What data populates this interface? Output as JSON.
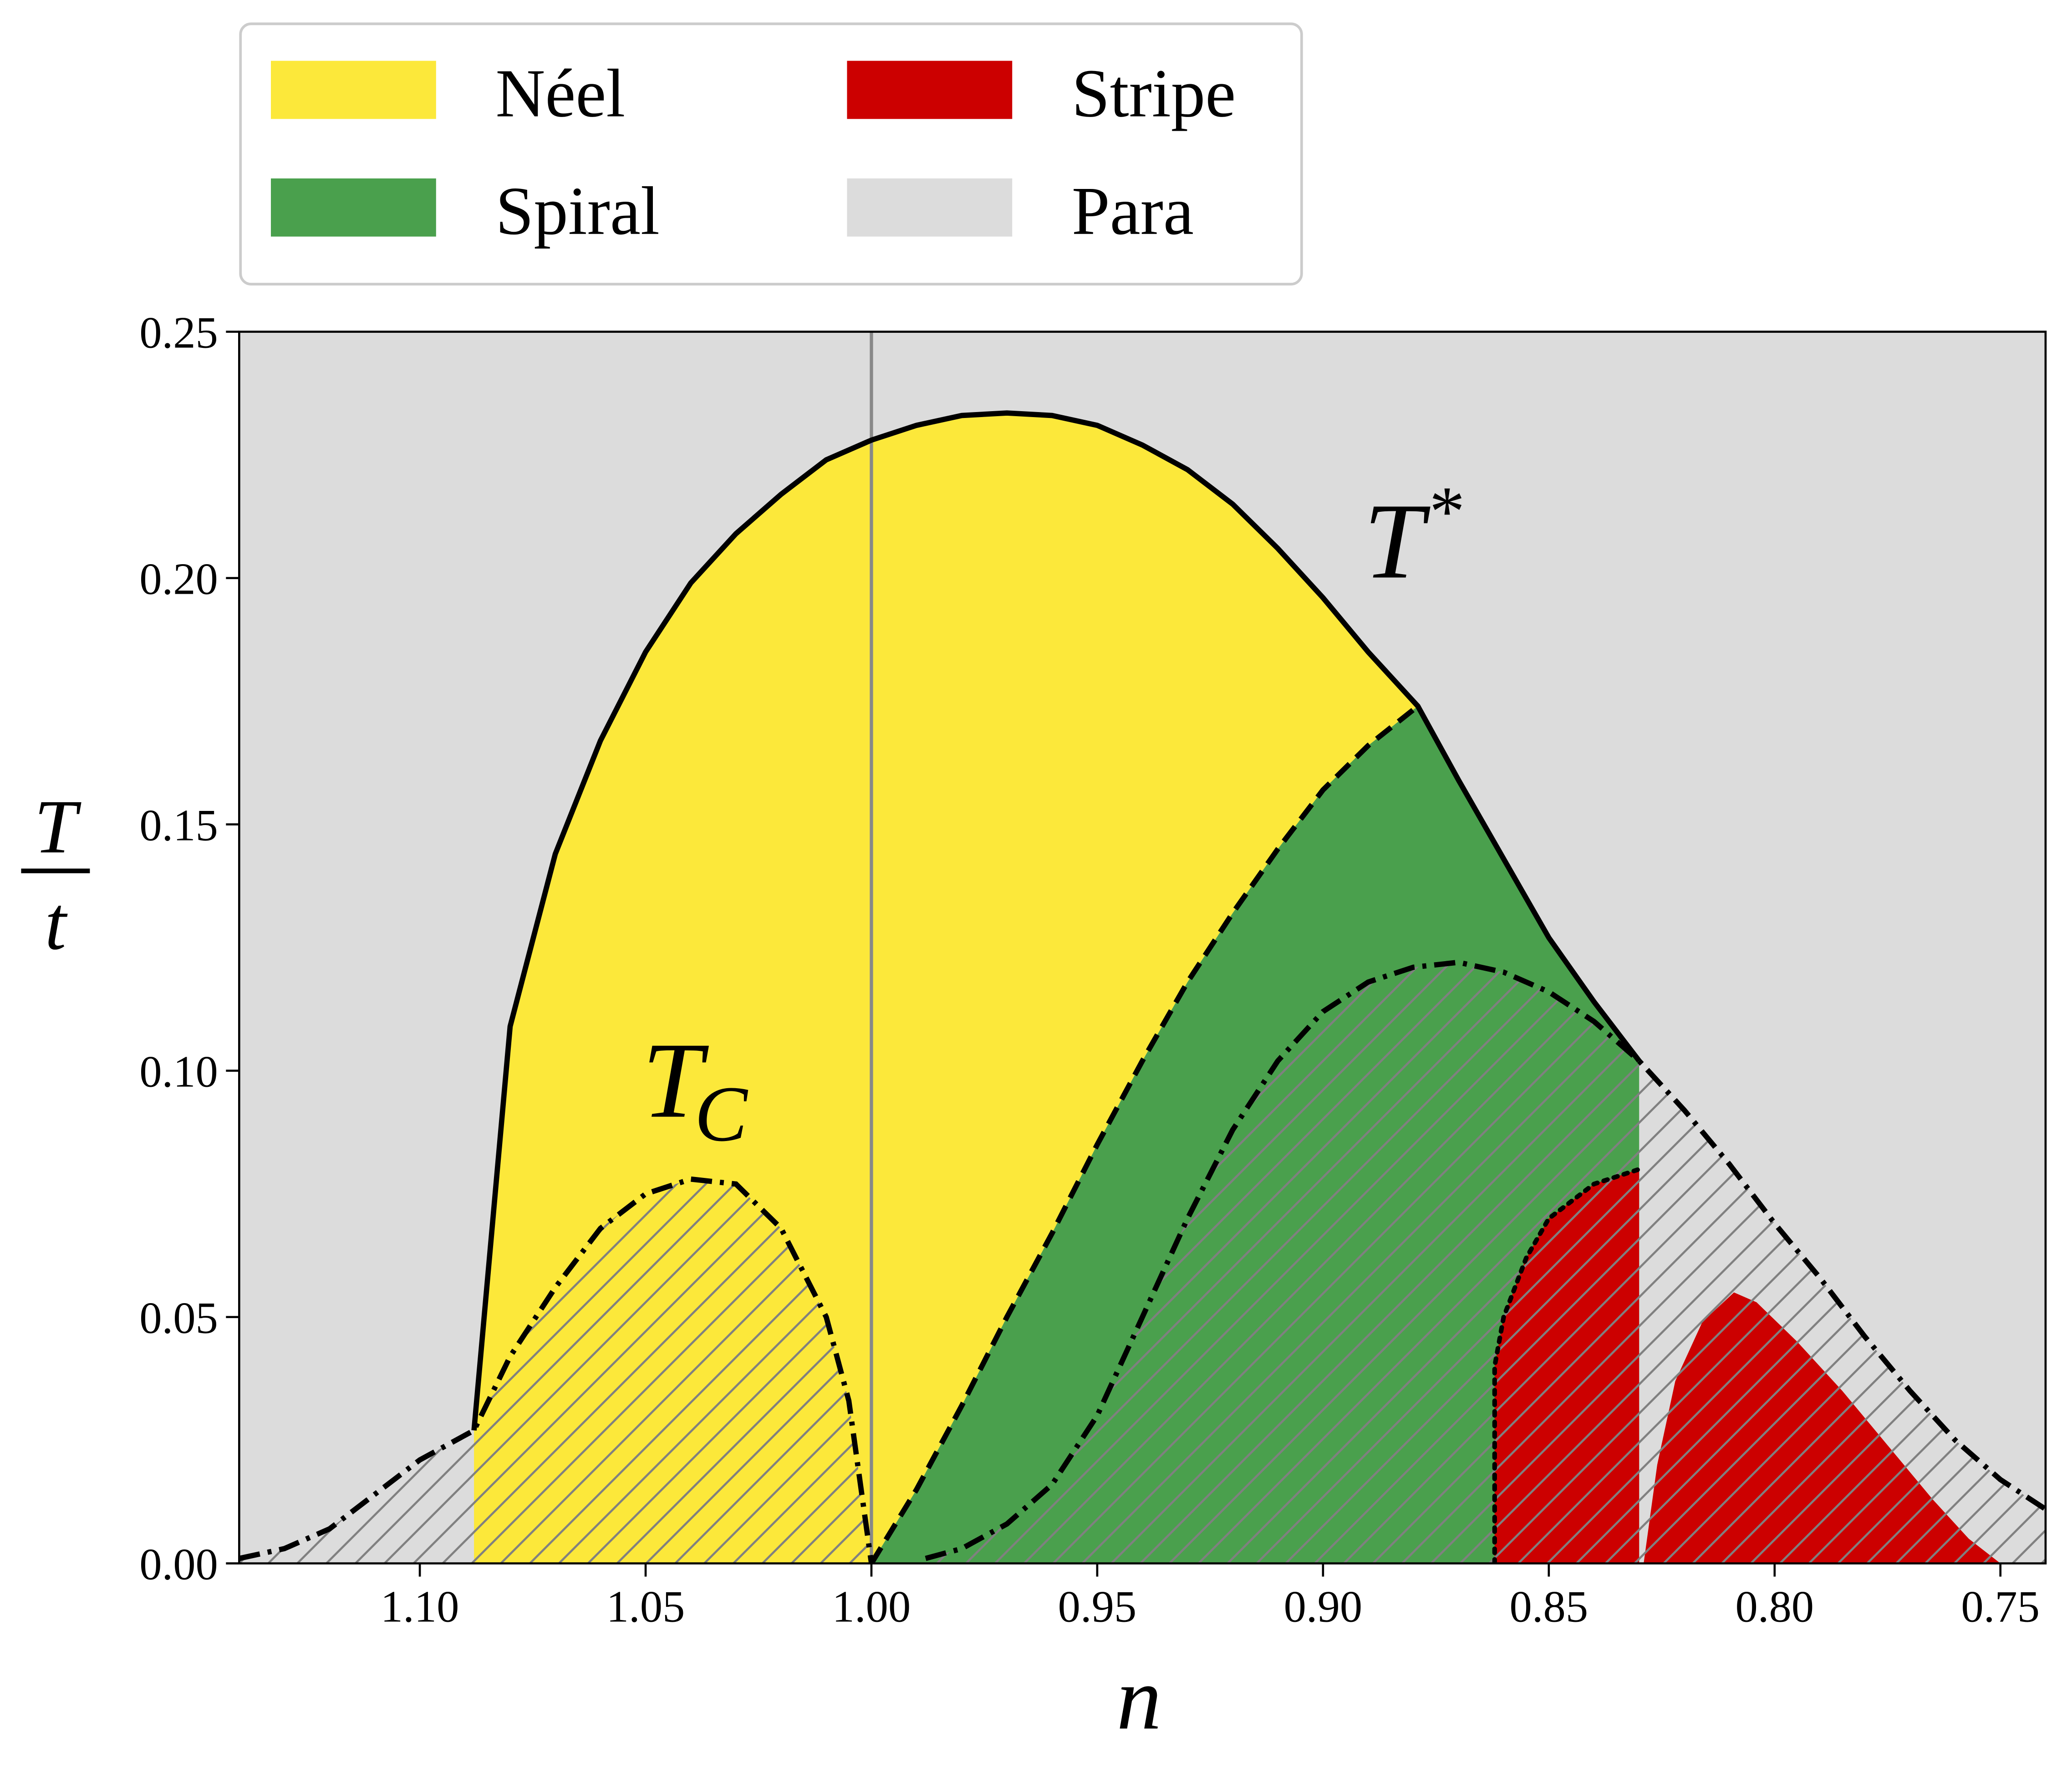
{
  "chart_data": {
    "type": "phase",
    "xlabel": "n",
    "ylabel": {
      "numerator": "T",
      "denominator": "t"
    },
    "xlim": [
      1.14,
      0.74
    ],
    "ylim": [
      0,
      0.25
    ],
    "xticks": [
      {
        "value": 1.1,
        "label": "1.10"
      },
      {
        "value": 1.05,
        "label": "1.05"
      },
      {
        "value": 1.0,
        "label": "1.00"
      },
      {
        "value": 0.95,
        "label": "0.95"
      },
      {
        "value": 0.9,
        "label": "0.90"
      },
      {
        "value": 0.85,
        "label": "0.85"
      },
      {
        "value": 0.8,
        "label": "0.80"
      },
      {
        "value": 0.75,
        "label": "0.75"
      }
    ],
    "yticks": [
      {
        "value": 0,
        "label": "0.00"
      },
      {
        "value": 0.05,
        "label": "0.05"
      },
      {
        "value": 0.1,
        "label": "0.10"
      },
      {
        "value": 0.15,
        "label": "0.15"
      },
      {
        "value": 0.2,
        "label": "0.20"
      },
      {
        "value": 0.25,
        "label": "0.25"
      }
    ],
    "legend": "top",
    "reference_x": 1.0,
    "series": [
      {
        "name": "Néel",
        "color": "#fce83a",
        "x": [
          1.088,
          1.088,
          1.08,
          1.07,
          1.06,
          1.05,
          1.04,
          1.03,
          1.02,
          1.01,
          1.0,
          0.99,
          0.98,
          0.97,
          0.96,
          0.95,
          0.94,
          0.93,
          0.92,
          0.91,
          0.9,
          0.89,
          0.879,
          0.89,
          0.9,
          0.91,
          0.92,
          0.93,
          0.94,
          0.95,
          0.96,
          0.97,
          0.98,
          0.99,
          1.0
        ],
        "y": [
          0,
          0.027,
          0.109,
          0.144,
          0.167,
          0.185,
          0.199,
          0.209,
          0.217,
          0.224,
          0.228,
          0.231,
          0.233,
          0.2335,
          0.233,
          0.231,
          0.227,
          0.222,
          0.215,
          0.206,
          0.196,
          0.185,
          0.174,
          0.166,
          0.157,
          0.145,
          0.132,
          0.118,
          0.102,
          0.085,
          0.067,
          0.05,
          0.032,
          0.015,
          0
        ]
      },
      {
        "name": "Spiral",
        "color": "#4aa04d",
        "x": [
          1.0,
          0.99,
          0.98,
          0.97,
          0.96,
          0.95,
          0.94,
          0.93,
          0.92,
          0.91,
          0.9,
          0.89,
          0.879,
          0.87,
          0.86,
          0.85,
          0.84,
          0.83,
          0.83
        ],
        "y": [
          0,
          0.015,
          0.032,
          0.05,
          0.067,
          0.085,
          0.102,
          0.118,
          0.132,
          0.145,
          0.157,
          0.166,
          0.174,
          0.159,
          0.143,
          0.127,
          0.114,
          0.102,
          0
        ]
      },
      {
        "name": "Stripe",
        "color": "#cc0000",
        "x": [
          0.862,
          0.862,
          0.86,
          0.855,
          0.85,
          0.84,
          0.83,
          0.83,
          null,
          0.829,
          0.826,
          0.822,
          0.816,
          0.809,
          0.804,
          0.795,
          0.785,
          0.775,
          0.765,
          0.757,
          0.75
        ],
        "y": [
          0,
          0.04,
          0.05,
          0.062,
          0.07,
          0.077,
          0.08,
          0,
          null,
          0,
          0.02,
          0.037,
          0.049,
          0.055,
          0.053,
          0.045,
          0.035,
          0.024,
          0.013,
          0.005,
          0
        ]
      },
      {
        "name": "Para",
        "color": "#dcdcdc",
        "background": true
      }
    ],
    "boundaries": [
      {
        "style": "solid",
        "x": [
          1.088,
          1.08,
          1.07,
          1.06,
          1.05,
          1.04,
          1.03,
          1.02,
          1.01,
          1.0,
          0.99,
          0.98,
          0.97,
          0.96,
          0.95,
          0.94,
          0.93,
          0.92,
          0.91,
          0.9,
          0.89,
          0.879,
          0.87,
          0.86,
          0.85,
          0.84,
          0.83
        ],
        "y": [
          0.027,
          0.109,
          0.144,
          0.167,
          0.185,
          0.199,
          0.209,
          0.217,
          0.224,
          0.228,
          0.231,
          0.233,
          0.2335,
          0.233,
          0.231,
          0.227,
          0.222,
          0.215,
          0.206,
          0.196,
          0.185,
          0.174,
          0.159,
          0.143,
          0.127,
          0.114,
          0.102
        ]
      },
      {
        "style": "dashdot",
        "hatch": true,
        "x": [
          1.14,
          1.13,
          1.12,
          1.11,
          1.1,
          1.088,
          1.08,
          1.07,
          1.06,
          1.05,
          1.04,
          1.03,
          1.02,
          1.01,
          1.005,
          1.0
        ],
        "y": [
          0.001,
          0.003,
          0.007,
          0.014,
          0.021,
          0.027,
          0.042,
          0.056,
          0.068,
          0.075,
          0.078,
          0.077,
          0.068,
          0.05,
          0.033,
          0
        ]
      },
      {
        "style": "dashed",
        "x": [
          1.0,
          0.99,
          0.98,
          0.97,
          0.96,
          0.95,
          0.94,
          0.93,
          0.92,
          0.91,
          0.9,
          0.89,
          0.879
        ],
        "y": [
          0,
          0.015,
          0.032,
          0.05,
          0.067,
          0.085,
          0.102,
          0.118,
          0.132,
          0.145,
          0.157,
          0.166,
          0.174
        ]
      },
      {
        "style": "dashdot",
        "hatch": true,
        "x": [
          0.988,
          0.98,
          0.97,
          0.96,
          0.95,
          0.94,
          0.93,
          0.92,
          0.91,
          0.9,
          0.89,
          0.88,
          0.87,
          0.86,
          0.85,
          0.84,
          0.83,
          0.82,
          0.81,
          0.8,
          0.79,
          0.78,
          0.77,
          0.76,
          0.75,
          0.74
        ],
        "y": [
          0.001,
          0.003,
          0.008,
          0.016,
          0.03,
          0.05,
          0.07,
          0.088,
          0.102,
          0.112,
          0.118,
          0.121,
          0.122,
          0.12,
          0.116,
          0.11,
          0.102,
          0.092,
          0.081,
          0.069,
          0.058,
          0.046,
          0.035,
          0.025,
          0.017,
          0.011
        ]
      },
      {
        "style": "dotted",
        "x": [
          0.862,
          0.862,
          0.86,
          0.855,
          0.85,
          0.84,
          0.83
        ],
        "y": [
          0,
          0.04,
          0.05,
          0.062,
          0.07,
          0.077,
          0.08
        ]
      }
    ],
    "annotations": [
      {
        "text": "T",
        "superscript": "*"
      },
      {
        "text": "T",
        "subscript": "C"
      }
    ]
  }
}
